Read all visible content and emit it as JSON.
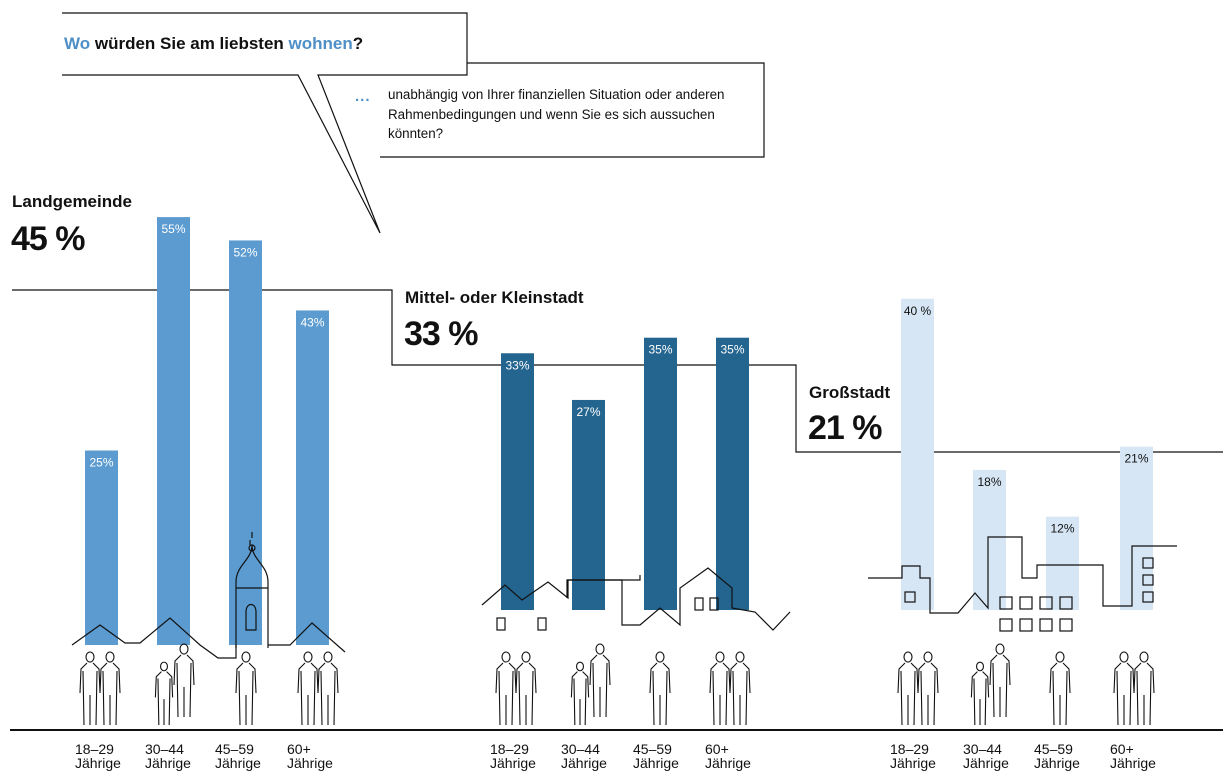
{
  "question": {
    "part1": "Wo",
    "part2": " würden Sie am liebsten ",
    "part3": "wohnen",
    "part4": "?"
  },
  "subtitle": {
    "dots": "...",
    "text": "unabhängig von Ihrer finanziellen Situation oder anderen Rahmenbedingungen und wenn Sie es sich aussuchen könnten?"
  },
  "colors": {
    "landgemeinde": "#5b9bd0",
    "kleinstadt": "#246590",
    "grossstadt": "#d6e6f4"
  },
  "chart_data": {
    "type": "bar",
    "categories": [
      "18–29 Jährige",
      "30–44 Jährige",
      "45–59 Jährige",
      "60+ Jährige"
    ],
    "ylim": [
      0,
      60
    ],
    "groups": [
      {
        "name": "Landgemeinde",
        "total": "45 %",
        "values": [
          25,
          55,
          52,
          43
        ],
        "labels": [
          "25%",
          "55%",
          "52%",
          "43%"
        ]
      },
      {
        "name": "Mittel- oder Kleinstadt",
        "total": "33 %",
        "values": [
          33,
          27,
          35,
          35
        ],
        "labels": [
          "33%",
          "27%",
          "35%",
          "35%"
        ]
      },
      {
        "name": "Großstadt",
        "total": "21 %",
        "values": [
          40,
          18,
          12,
          21
        ],
        "labels": [
          "40 %",
          "18%",
          "12%",
          "21%"
        ]
      }
    ],
    "age_labels": [
      {
        "line1": "18–29",
        "line2": "Jährige"
      },
      {
        "line1": "30–44",
        "line2": "Jährige"
      },
      {
        "line1": "45–59",
        "line2": "Jährige"
      },
      {
        "line1": "60+",
        "line2": "Jährige"
      }
    ]
  }
}
